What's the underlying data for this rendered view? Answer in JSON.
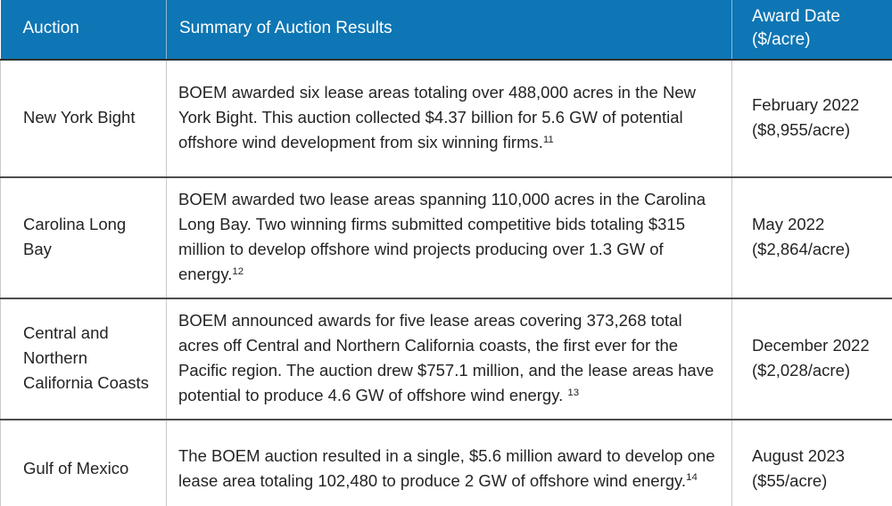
{
  "colors": {
    "header_bg": "#0e76b4",
    "header_text": "#ffffff",
    "body_text": "#242424"
  },
  "table": {
    "headers": {
      "auction": "Auction",
      "summary": "Summary of Auction Results",
      "award": "Award Date ($/acre)"
    },
    "rows": [
      {
        "auction": "New York Bight",
        "summary": "BOEM awarded six lease areas totaling over 488,000 acres in the New York Bight. This auction collected $4.37 billion for 5.6 GW of potential offshore wind development from six winning firms.",
        "footnote": "11",
        "award_date": "February 2022",
        "award_rate": "($8,955/acre)"
      },
      {
        "auction": "Carolina Long Bay",
        "summary": "BOEM awarded two lease areas spanning 110,000 acres in the Carolina Long Bay. Two winning firms submitted competitive bids totaling $315 million to develop offshore wind projects producing over 1.3 GW of energy.",
        "footnote": "12",
        "award_date": "May 2022",
        "award_rate": "($2,864/acre)"
      },
      {
        "auction": "Central and Northern California Coasts",
        "summary": "BOEM announced awards for five lease areas covering 373,268 total acres off Central and Northern California coasts, the first ever for the Pacific region. The auction drew $757.1 million, and the lease areas have potential to produce 4.6 GW of offshore wind energy. ",
        "footnote": "13",
        "award_date": "December 2022",
        "award_rate": "($2,028/acre)"
      },
      {
        "auction": "Gulf of Mexico",
        "summary": "The BOEM auction resulted in a single, $5.6 million award to develop one lease area totaling 102,480 to produce 2 GW of offshore wind energy.",
        "footnote": "14",
        "award_date": "August 2023",
        "award_rate": "($55/acre)"
      }
    ]
  }
}
